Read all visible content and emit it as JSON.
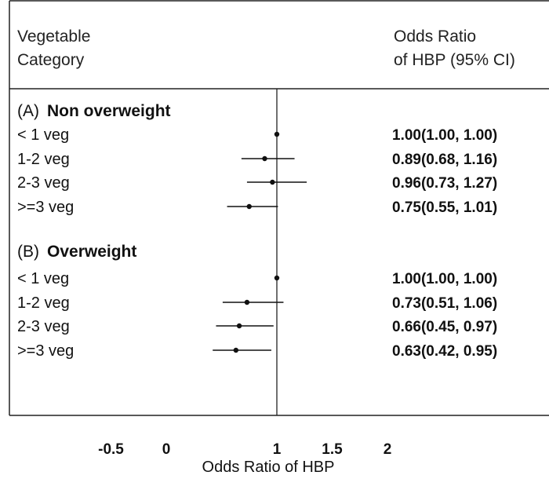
{
  "header": {
    "left_line1": "Vegetable",
    "left_line2": "Category",
    "right_line1": "Odds Ratio",
    "right_line2": "of HBP (95% CI)"
  },
  "chart_data": {
    "type": "forest",
    "xlabel": "Odds Ratio of HBP",
    "x_ticks": [
      "-0.5",
      "0",
      "1",
      "1.5",
      "2"
    ],
    "x_tick_values": [
      -0.5,
      0,
      1,
      1.5,
      2
    ],
    "reference_line": 1,
    "groups": [
      {
        "prefix": "(A)",
        "name": "Non overweight",
        "rows": [
          {
            "label": "< 1 veg",
            "or": 1.0,
            "lo": 1.0,
            "hi": 1.0,
            "text": "1.00(1.00, 1.00)"
          },
          {
            "label": "1-2 veg",
            "or": 0.89,
            "lo": 0.68,
            "hi": 1.16,
            "text": "0.89(0.68, 1.16)"
          },
          {
            "label": "2-3 veg",
            "or": 0.96,
            "lo": 0.73,
            "hi": 1.27,
            "text": "0.96(0.73, 1.27)"
          },
          {
            "label": ">=3 veg",
            "or": 0.75,
            "lo": 0.55,
            "hi": 1.01,
            "text": "0.75(0.55, 1.01)"
          }
        ]
      },
      {
        "prefix": "(B)",
        "name": "Overweight",
        "rows": [
          {
            "label": "< 1 veg",
            "or": 1.0,
            "lo": 1.0,
            "hi": 1.0,
            "text": "1.00(1.00, 1.00)"
          },
          {
            "label": "1-2 veg",
            "or": 0.73,
            "lo": 0.51,
            "hi": 1.06,
            "text": "0.73(0.51, 1.06)"
          },
          {
            "label": "2-3 veg",
            "or": 0.66,
            "lo": 0.45,
            "hi": 0.97,
            "text": "0.66(0.45, 0.97)"
          },
          {
            "label": ">=3 veg",
            "or": 0.63,
            "lo": 0.42,
            "hi": 0.95,
            "text": "0.63(0.42, 0.95)"
          }
        ]
      }
    ]
  }
}
